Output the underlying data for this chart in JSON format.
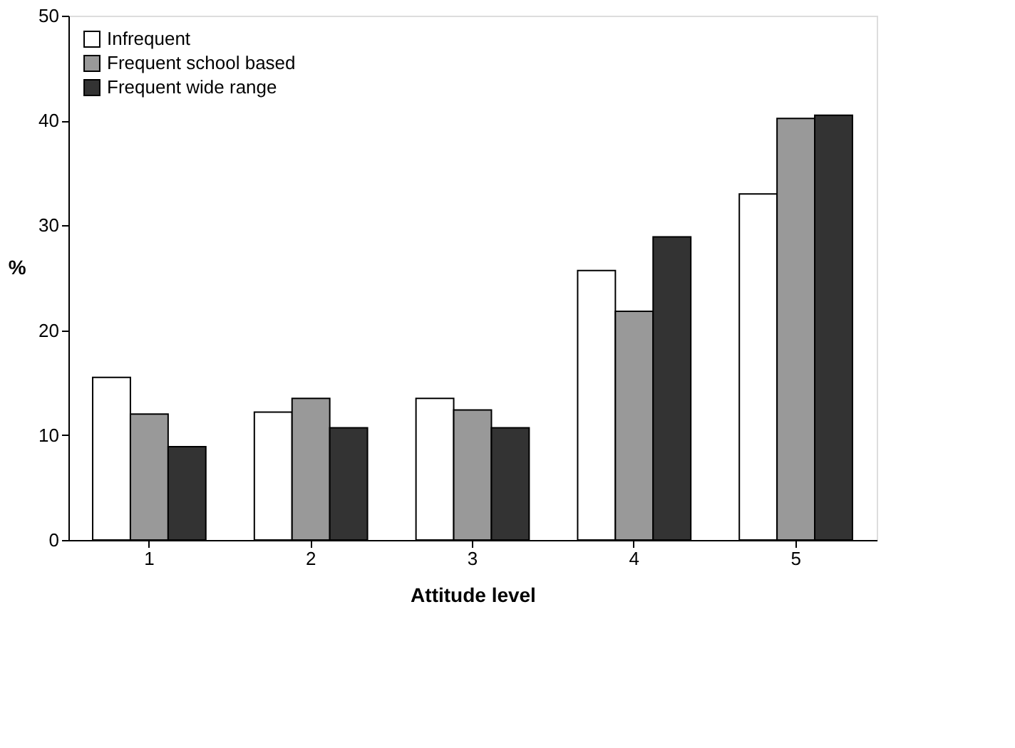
{
  "chart_data": {
    "type": "bar",
    "xlabel": "Attitude level",
    "ylabel": "%",
    "categories": [
      "1",
      "2",
      "3",
      "4",
      "5"
    ],
    "series": [
      {
        "name": "Infrequent",
        "color": "#ffffff",
        "values": [
          15.5,
          12.2,
          13.5,
          25.7,
          33.0
        ]
      },
      {
        "name": "Frequent school based",
        "color": "#999999",
        "values": [
          12.0,
          13.5,
          12.4,
          21.8,
          40.2
        ]
      },
      {
        "name": "Frequent wide range",
        "color": "#333333",
        "values": [
          8.9,
          10.7,
          10.7,
          28.9,
          40.5
        ]
      }
    ],
    "ylim": [
      0,
      50
    ],
    "yticks": [
      0,
      10,
      20,
      30,
      40,
      50
    ],
    "grid": false,
    "legend": "top left"
  }
}
